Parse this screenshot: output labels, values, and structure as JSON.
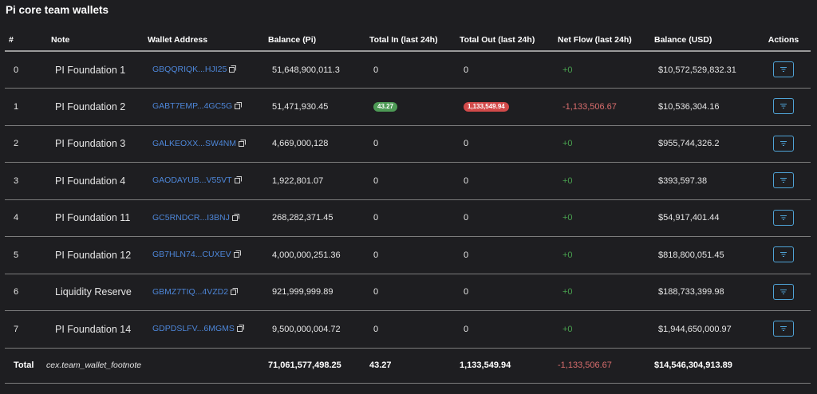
{
  "page": {
    "title": "Pi core team wallets"
  },
  "columns": [
    "#",
    "Note",
    "Wallet Address",
    "Balance (Pi)",
    "Total In (last 24h)",
    "Total Out (last 24h)",
    "Net Flow (last 24h)",
    "Balance (USD)",
    "Actions"
  ],
  "rows": [
    {
      "index": "0",
      "note": "PI Foundation 1",
      "address": "GBQQRIQK...HJI25",
      "balance_pi": "51,648,900,011.3",
      "total_in": "0",
      "total_out": "0",
      "net_flow": "+0",
      "balance_usd": "$10,572,529,832.31"
    },
    {
      "index": "1",
      "note": "PI Foundation 2",
      "address": "GABT7EMP...4GC5G",
      "balance_pi": "51,471,930.45",
      "total_in": "43.27",
      "total_out": "1,133,549.94",
      "net_flow": "-1,133,506.67",
      "balance_usd": "$10,536,304.16"
    },
    {
      "index": "2",
      "note": "PI Foundation 3",
      "address": "GALKEOXX...SW4NM",
      "balance_pi": "4,669,000,128",
      "total_in": "0",
      "total_out": "0",
      "net_flow": "+0",
      "balance_usd": "$955,744,326.2"
    },
    {
      "index": "3",
      "note": "PI Foundation 4",
      "address": "GAODAYUB...V55VT",
      "balance_pi": "1,922,801.07",
      "total_in": "0",
      "total_out": "0",
      "net_flow": "+0",
      "balance_usd": "$393,597.38"
    },
    {
      "index": "4",
      "note": "PI Foundation 11",
      "address": "GC5RNDCR...I3BNJ",
      "balance_pi": "268,282,371.45",
      "total_in": "0",
      "total_out": "0",
      "net_flow": "+0",
      "balance_usd": "$54,917,401.44"
    },
    {
      "index": "5",
      "note": "PI Foundation 12",
      "address": "GB7HLN74...CUXEV",
      "balance_pi": "4,000,000,251.36",
      "total_in": "0",
      "total_out": "0",
      "net_flow": "+0",
      "balance_usd": "$818,800,051.45"
    },
    {
      "index": "6",
      "note": "Liquidity Reserve",
      "address": "GBMZ7TIQ...4VZD2",
      "balance_pi": "921,999,999.89",
      "total_in": "0",
      "total_out": "0",
      "net_flow": "+0",
      "balance_usd": "$188,733,399.98"
    },
    {
      "index": "7",
      "note": "PI Foundation 14",
      "address": "GDPDSLFV...6MGMS",
      "balance_pi": "9,500,000,004.72",
      "total_in": "0",
      "total_out": "0",
      "net_flow": "+0",
      "balance_usd": "$1,944,650,000.97"
    }
  ],
  "total": {
    "label": "Total",
    "note": "cex.team_wallet_footnote",
    "balance_pi": "71,061,577,498.25",
    "total_in": "43.27",
    "total_out": "1,133,549.94",
    "net_flow": "-1,133,506.67",
    "balance_usd": "$14,546,304,913.89"
  },
  "colors": {
    "background": "#1e1e21",
    "address_link": "#4d86d8",
    "positive": "#49a14f",
    "negative": "#d96d6d",
    "badge_in": "#4d9a55",
    "badge_out": "#d24a4a",
    "action_border": "#4fa3d6"
  },
  "icons": {
    "copy": "copy-icon",
    "action": "filter-icon"
  }
}
